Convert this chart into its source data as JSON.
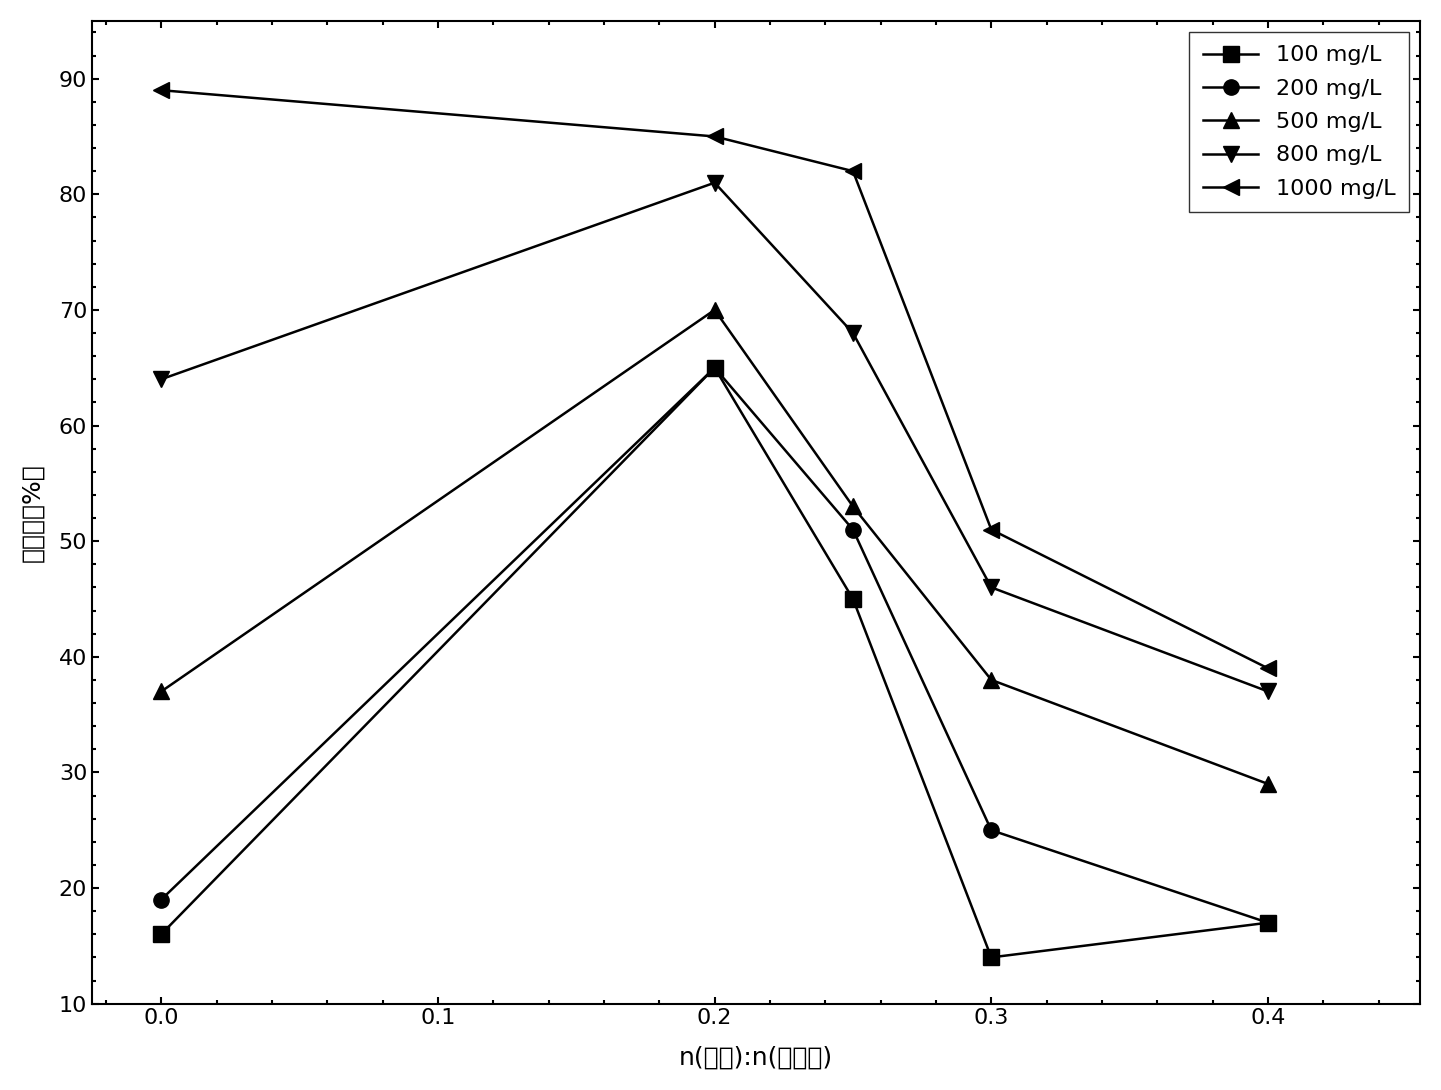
{
  "x_values": [
    0.0,
    0.2,
    0.25,
    0.3,
    0.4
  ],
  "series": [
    {
      "label": "100 mg/L",
      "y": [
        16,
        65,
        45,
        14,
        17
      ],
      "marker": "s",
      "color": "#000000"
    },
    {
      "label": "200 mg/L",
      "y": [
        19,
        65,
        51,
        25,
        17
      ],
      "marker": "o",
      "color": "#000000"
    },
    {
      "label": "500 mg/L",
      "y": [
        37,
        70,
        53,
        38,
        29
      ],
      "marker": "^",
      "color": "#000000"
    },
    {
      "label": "800 mg/L",
      "y": [
        64,
        81,
        68,
        46,
        37
      ],
      "marker": "v",
      "color": "#000000"
    },
    {
      "label": "1000 mg/L",
      "y": [
        89,
        85,
        82,
        51,
        39
      ],
      "marker": "<",
      "color": "#000000"
    }
  ],
  "xlabel": "n(尿素):n(双氰胺)",
  "ylabel": "脱色率（%）",
  "xlim": [
    -0.025,
    0.455
  ],
  "ylim": [
    10,
    95
  ],
  "xticks": [
    0.0,
    0.1,
    0.2,
    0.3,
    0.4
  ],
  "yticks": [
    10,
    20,
    30,
    40,
    50,
    60,
    70,
    80,
    90
  ],
  "legend_fontsize": 16,
  "axis_fontsize": 18,
  "tick_fontsize": 16,
  "marker_size": 11,
  "line_width": 1.8
}
